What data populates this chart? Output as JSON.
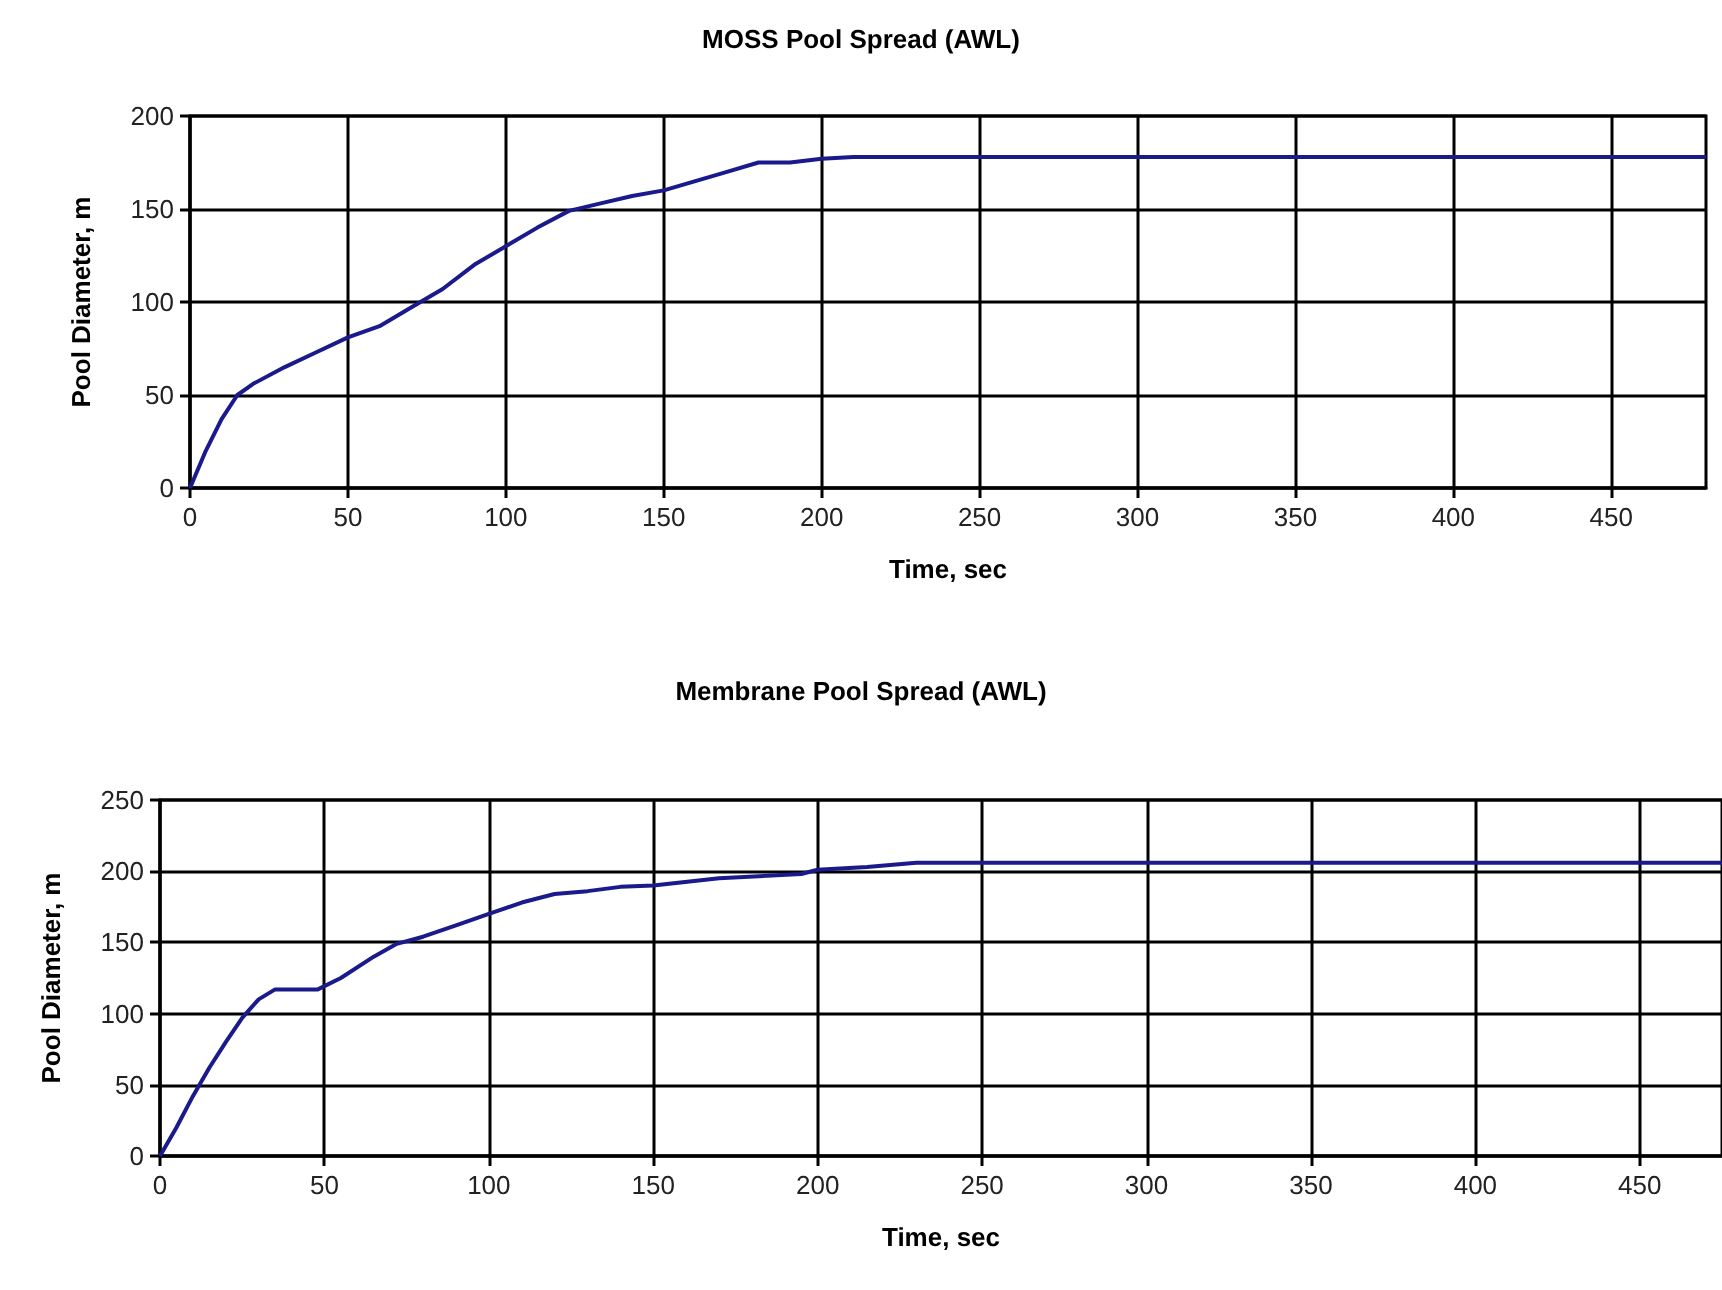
{
  "chart_data": [
    {
      "type": "line",
      "title": "MOSS Pool Spread (AWL)",
      "xlabel": "Time, sec",
      "ylabel": "Pool Diameter, m",
      "xlim": [
        0,
        480
      ],
      "xticks": [
        0,
        50,
        100,
        150,
        200,
        250,
        300,
        350,
        400,
        450
      ],
      "ylim": [
        0,
        200
      ],
      "yticks": [
        0,
        50,
        100,
        150,
        200
      ],
      "grid": true,
      "marker": "none",
      "line_style": "solid",
      "series": [
        {
          "color": "#1a1a8c",
          "x": [
            0,
            5,
            10,
            15,
            20,
            30,
            40,
            50,
            60,
            70,
            80,
            90,
            100,
            110,
            120,
            130,
            140,
            150,
            160,
            170,
            180,
            190,
            200,
            210,
            480
          ],
          "values": [
            0,
            20,
            37,
            50,
            56,
            65,
            73,
            81,
            87,
            97,
            107,
            120,
            130,
            140,
            149,
            153,
            157,
            160,
            165,
            170,
            175,
            175,
            177,
            178,
            178
          ]
        }
      ]
    },
    {
      "type": "line",
      "title": "Membrane Pool Spread (AWL)",
      "xlabel": "Time, sec",
      "ylabel": "Pool Diameter, m",
      "xlim": [
        0,
        475
      ],
      "xticks": [
        0,
        50,
        100,
        150,
        200,
        250,
        300,
        350,
        400,
        450
      ],
      "ylim": [
        0,
        250
      ],
      "yticks": [
        0,
        50,
        100,
        150,
        200,
        250
      ],
      "grid": true,
      "marker": "none",
      "line_style": "solid",
      "series": [
        {
          "color": "#1a1a8c",
          "x": [
            0,
            5,
            10,
            15,
            20,
            25,
            30,
            35,
            48,
            55,
            65,
            72,
            80,
            90,
            100,
            110,
            120,
            130,
            140,
            150,
            170,
            195,
            200,
            215,
            230,
            475
          ],
          "values": [
            0,
            20,
            42,
            62,
            80,
            97,
            110,
            117,
            117,
            125,
            140,
            149,
            154,
            162,
            170,
            178,
            184,
            186,
            189,
            190,
            195,
            198,
            201,
            203,
            206,
            206
          ]
        }
      ]
    }
  ]
}
